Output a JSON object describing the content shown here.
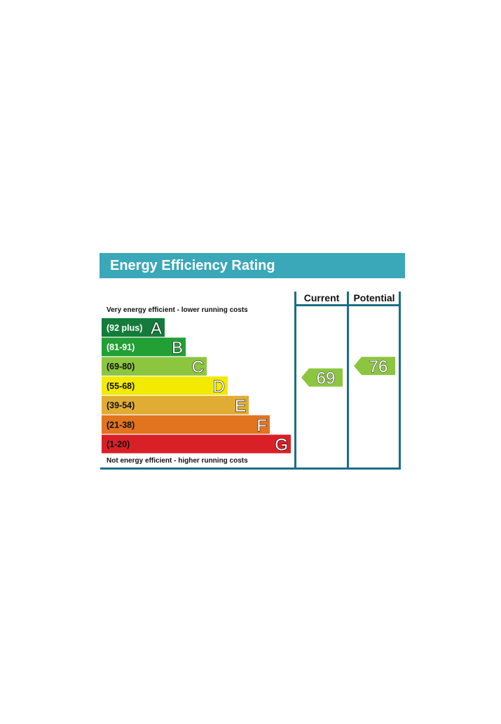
{
  "title": "Energy Efficiency Rating",
  "columns": {
    "current": "Current",
    "potential": "Potential"
  },
  "top_caption": "Very energy efficient - lower running costs",
  "bottom_caption": "Not energy efficient - higher running costs",
  "colors": {
    "header_bar": "#3aa8b8",
    "frame": "#1c6e86",
    "A": "#137b3b",
    "B": "#22a035",
    "C": "#8cc63f",
    "D": "#f2ea00",
    "E": "#e0ac33",
    "F": "#e2731f",
    "G": "#d92027",
    "current_arrow": "#8cc63f",
    "potential_arrow": "#8cc63f"
  },
  "chart_data": {
    "type": "bar",
    "title": "Energy Efficiency Rating",
    "bands": [
      {
        "letter": "A",
        "range": "(92 plus)",
        "min": 92,
        "max": 100
      },
      {
        "letter": "B",
        "range": "(81-91)",
        "min": 81,
        "max": 91
      },
      {
        "letter": "C",
        "range": "(69-80)",
        "min": 69,
        "max": 80
      },
      {
        "letter": "D",
        "range": "(55-68)",
        "min": 55,
        "max": 68
      },
      {
        "letter": "E",
        "range": "(39-54)",
        "min": 39,
        "max": 54
      },
      {
        "letter": "F",
        "range": "(21-38)",
        "min": 21,
        "max": 38
      },
      {
        "letter": "G",
        "range": "(1-20)",
        "min": 1,
        "max": 20
      }
    ],
    "series": [
      {
        "name": "Current",
        "value": 69,
        "band": "C"
      },
      {
        "name": "Potential",
        "value": 76,
        "band": "C"
      }
    ]
  }
}
